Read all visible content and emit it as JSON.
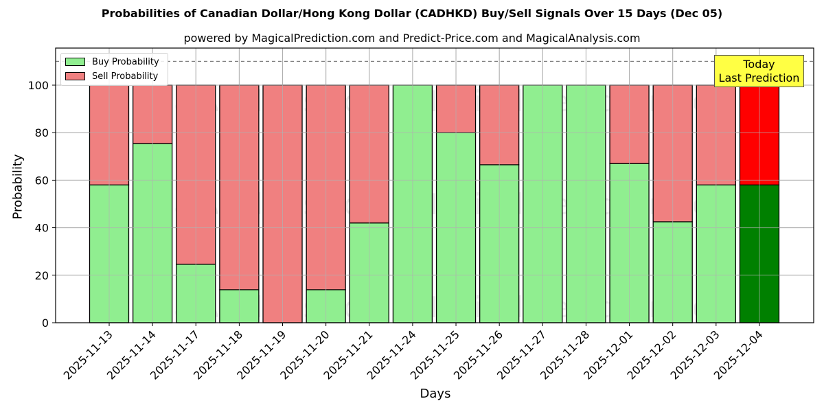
{
  "header": {
    "title": "Probabilities of Canadian Dollar/Hong Kong Dollar (CADHKD) Buy/Sell Signals Over 15 Days (Dec 05)",
    "subtitle": "powered by MagicalPrediction.com and Predict-Price.com and MagicalAnalysis.com"
  },
  "legend": {
    "buy_label": "Buy Probability",
    "sell_label": "Sell Probability"
  },
  "annotation": {
    "line1": "Today",
    "line2": "Last Prediction"
  },
  "axes": {
    "xlabel": "Days",
    "ylabel": "Probability"
  },
  "watermarks": [
    "MagicalAnalysis.com",
    "MagicalPrediction.com"
  ],
  "colors": {
    "buy": "#90ee90",
    "sell": "#f08080",
    "buy_today": "#008000",
    "sell_today": "#ff0000",
    "annotation_bg": "#ffff44",
    "grid": "#b0b0b0"
  },
  "chart_data": {
    "type": "bar",
    "stacked": true,
    "title": "Probabilities of Canadian Dollar/Hong Kong Dollar (CADHKD) Buy/Sell Signals Over 15 Days (Dec 05)",
    "subtitle": "powered by MagicalPrediction.com and Predict-Price.com and MagicalAnalysis.com",
    "xlabel": "Days",
    "ylabel": "Probability",
    "ylim": [
      0,
      115
    ],
    "yticks": [
      0,
      20,
      40,
      60,
      80,
      100
    ],
    "grid": true,
    "legend_position": "upper left",
    "reference_line": {
      "y": 110,
      "style": "dashed",
      "color": "#808080"
    },
    "categories": [
      "2025-11-13",
      "2025-11-14",
      "2025-11-17",
      "2025-11-18",
      "2025-11-19",
      "2025-11-20",
      "2025-11-21",
      "2025-11-24",
      "2025-11-25",
      "2025-11-26",
      "2025-11-27",
      "2025-11-28",
      "2025-12-01",
      "2025-12-02",
      "2025-12-03",
      "2025-12-04"
    ],
    "series": [
      {
        "name": "Buy Probability",
        "values": [
          58,
          75.4,
          24.6,
          13.9,
          0,
          13.9,
          42,
          100,
          80,
          66.5,
          100,
          100,
          67,
          42.5,
          58,
          58
        ]
      },
      {
        "name": "Sell Probability",
        "values": [
          42,
          24.6,
          75.4,
          86.1,
          100,
          86.1,
          58,
          0,
          20,
          33.5,
          0,
          0,
          33,
          57.5,
          42,
          42
        ]
      }
    ],
    "highlighted_category": "2025-12-04",
    "annotation": "Today\nLast Prediction"
  }
}
